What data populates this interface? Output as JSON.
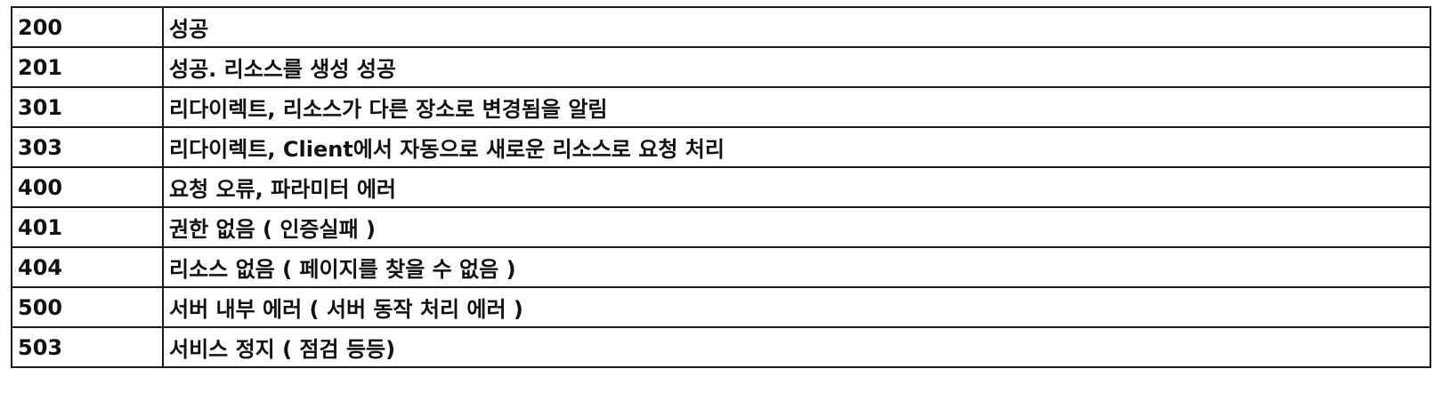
{
  "status_codes": {
    "rows": [
      {
        "code": "200",
        "description": "성공"
      },
      {
        "code": "201",
        "description": "성공. 리소스를 생성 성공"
      },
      {
        "code": "301",
        "description": "리다이렉트, 리소스가 다른 장소로 변경됨을 알림"
      },
      {
        "code": "303",
        "description": "리다이렉트, Client에서 자동으로 새로운 리소스로 요청 처리"
      },
      {
        "code": "400",
        "description": "요청 오류, 파라미터 에러"
      },
      {
        "code": "401",
        "description": "권한 없음 ( 인증실패 )"
      },
      {
        "code": "404",
        "description": "리소스 없음 ( 페이지를 찾을 수 없음 )"
      },
      {
        "code": "500",
        "description": "서버 내부 에러 ( 서버 동작 처리 에러 )"
      },
      {
        "code": "503",
        "description": "서비스 정지 ( 점검 등등)"
      }
    ]
  }
}
